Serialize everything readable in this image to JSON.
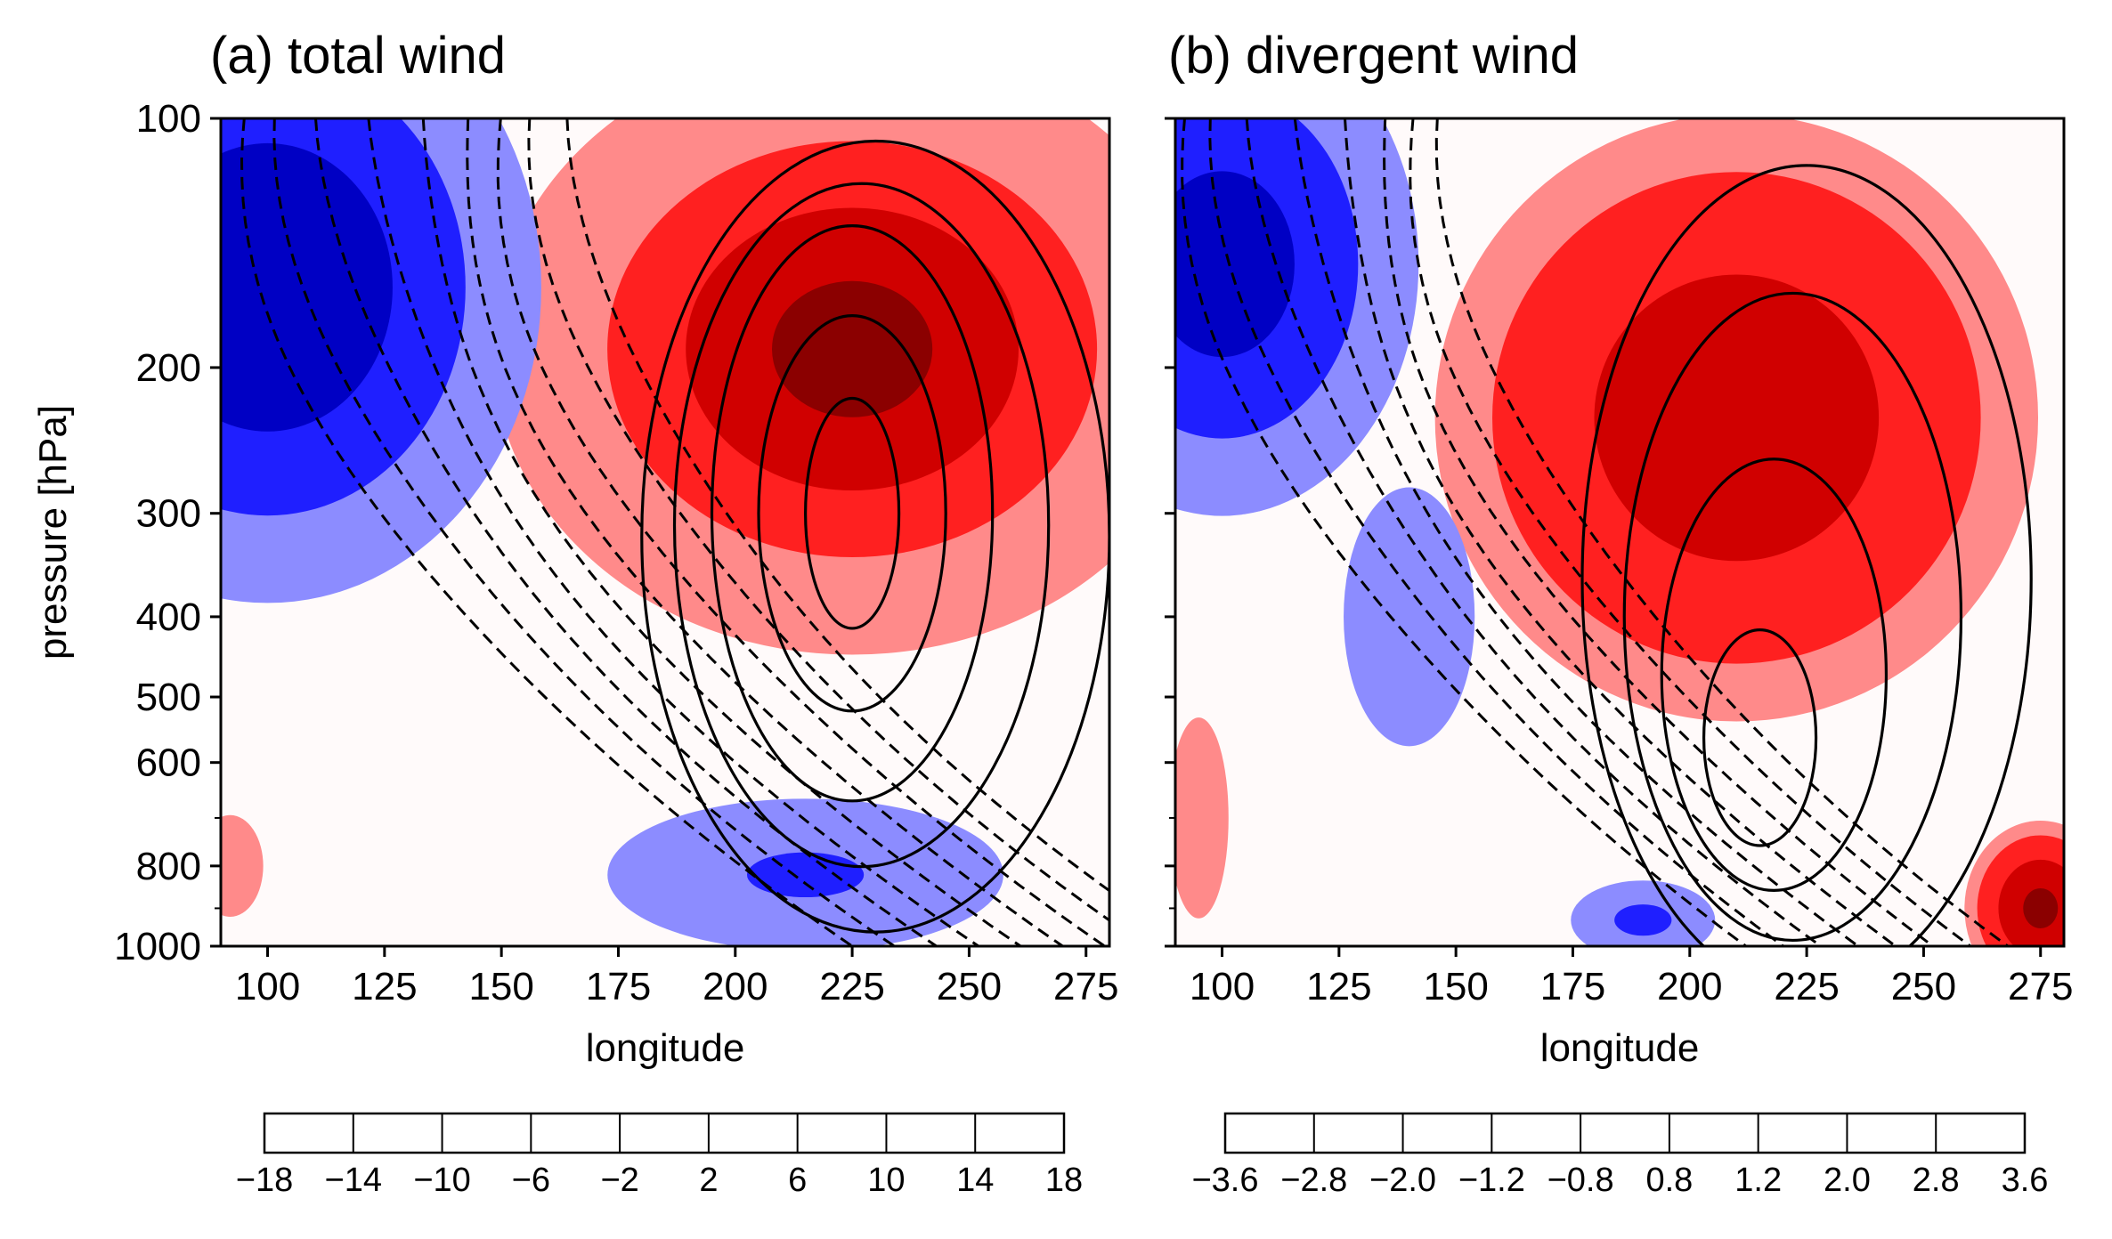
{
  "chart_data": [
    {
      "type": "heatmap",
      "title": "(a) total wind",
      "xlabel": "longitude",
      "ylabel": "pressure [hPa]",
      "xlim": [
        90,
        280
      ],
      "ylim": [
        1000,
        100
      ],
      "y_scale": "log",
      "xticks": [
        100,
        125,
        150,
        175,
        200,
        225,
        250,
        275
      ],
      "xtick_labels": [
        "100",
        "125",
        "150",
        "175",
        "200",
        "225",
        "250",
        "275"
      ],
      "yticks": [
        100,
        200,
        300,
        400,
        500,
        600,
        800,
        1000
      ],
      "ytick_labels": [
        "100",
        "200",
        "300",
        "400",
        "500",
        "600",
        "800",
        "1000"
      ],
      "colorbar": {
        "levels": [
          -18,
          -14,
          -10,
          -6,
          -2,
          2,
          6,
          10,
          14,
          18
        ],
        "labels": [
          "−18",
          "−14",
          "−10",
          "−6",
          "−2",
          "2",
          "6",
          "10",
          "14",
          "18"
        ],
        "colors": [
          "#000070",
          "#0000c4",
          "#1f1fff",
          "#8c8cff",
          "#fffafa",
          "#ff8a8a",
          "#ff2020",
          "#d00000",
          "#8b0000"
        ]
      },
      "field": {
        "blobs": [
          {
            "sign": "pos",
            "lon": 225,
            "p": 190,
            "amp": 15.5,
            "sx": 38,
            "sy": 0.42
          },
          {
            "sign": "neg",
            "lon": 100,
            "p": 160,
            "amp": 17.5,
            "sx": 40,
            "sy": 0.6
          },
          {
            "sign": "neg",
            "lon": 170,
            "p": 380,
            "amp": 5,
            "sx": 35,
            "sy": 0.45
          },
          {
            "sign": "neg",
            "lon": 215,
            "p": 820,
            "amp": 10.5,
            "sx": 40,
            "sy": 0.2
          },
          {
            "sign": "pos",
            "lon": 92,
            "p": 800,
            "amp": 4,
            "sx": 6,
            "sy": 0.12
          }
        ],
        "contours": [
          {
            "sign": "pos",
            "lon": 225,
            "p": 300,
            "rx": 10,
            "ry": 0.32
          },
          {
            "sign": "pos",
            "lon": 225,
            "p": 300,
            "rx": 20,
            "ry": 0.55
          },
          {
            "sign": "pos",
            "lon": 225,
            "p": 300,
            "rx": 30,
            "ry": 0.8
          },
          {
            "sign": "pos",
            "lon": 227,
            "p": 310,
            "rx": 40,
            "ry": 0.95
          },
          {
            "sign": "pos",
            "lon": 230,
            "p": 320,
            "rx": 50,
            "ry": 1.1
          }
        ]
      }
    },
    {
      "type": "heatmap",
      "title": "(b) divergent wind",
      "xlabel": "longitude",
      "ylabel": "",
      "xlim": [
        90,
        280
      ],
      "ylim": [
        1000,
        100
      ],
      "y_scale": "log",
      "xticks": [
        100,
        125,
        150,
        175,
        200,
        225,
        250,
        275
      ],
      "xtick_labels": [
        "100",
        "125",
        "150",
        "175",
        "200",
        "225",
        "250",
        "275"
      ],
      "yticks": [
        100,
        200,
        300,
        400,
        500,
        600,
        800,
        1000
      ],
      "ytick_labels": [
        "",
        "",
        "",
        "",
        "",
        "",
        "",
        ""
      ],
      "colorbar": {
        "levels": [
          -3.6,
          -2.8,
          -2.0,
          -1.2,
          -0.8,
          0.8,
          1.2,
          2.0,
          2.8,
          3.6
        ],
        "labels": [
          "−3.6",
          "−2.8",
          "−2.0",
          "−1.2",
          "−0.8",
          "0.8",
          "1.2",
          "2.0",
          "2.8",
          "3.6"
        ],
        "colors": [
          "#000070",
          "#0000c4",
          "#1f1fff",
          "#8c8cff",
          "#fffafa",
          "#ff8a8a",
          "#ff2020",
          "#d00000",
          "#8b0000"
        ]
      },
      "field": {
        "blobs": [
          {
            "sign": "pos",
            "lon": 210,
            "p": 230,
            "amp": 2.6,
            "sx": 42,
            "sy": 0.55
          },
          {
            "sign": "neg",
            "lon": 100,
            "p": 150,
            "amp": 3.2,
            "sx": 30,
            "sy": 0.5
          },
          {
            "sign": "neg",
            "lon": 140,
            "p": 400,
            "amp": 1.3,
            "sx": 35,
            "sy": 0.9
          },
          {
            "sign": "neg",
            "lon": 190,
            "p": 930,
            "amp": 2.2,
            "sx": 14,
            "sy": 0.1
          },
          {
            "sign": "pos",
            "lon": 275,
            "p": 900,
            "amp": 3.0,
            "sx": 10,
            "sy": 0.15
          },
          {
            "sign": "pos",
            "lon": 95,
            "p": 700,
            "amp": 1.1,
            "sx": 8,
            "sy": 0.35
          }
        ],
        "contours": [
          {
            "sign": "pos",
            "lon": 215,
            "p": 560,
            "rx": 12,
            "ry": 0.3
          },
          {
            "sign": "pos",
            "lon": 218,
            "p": 470,
            "rx": 24,
            "ry": 0.6
          },
          {
            "sign": "pos",
            "lon": 222,
            "p": 400,
            "rx": 36,
            "ry": 0.9
          },
          {
            "sign": "pos",
            "lon": 225,
            "p": 360,
            "rx": 48,
            "ry": 1.15
          }
        ]
      }
    }
  ]
}
